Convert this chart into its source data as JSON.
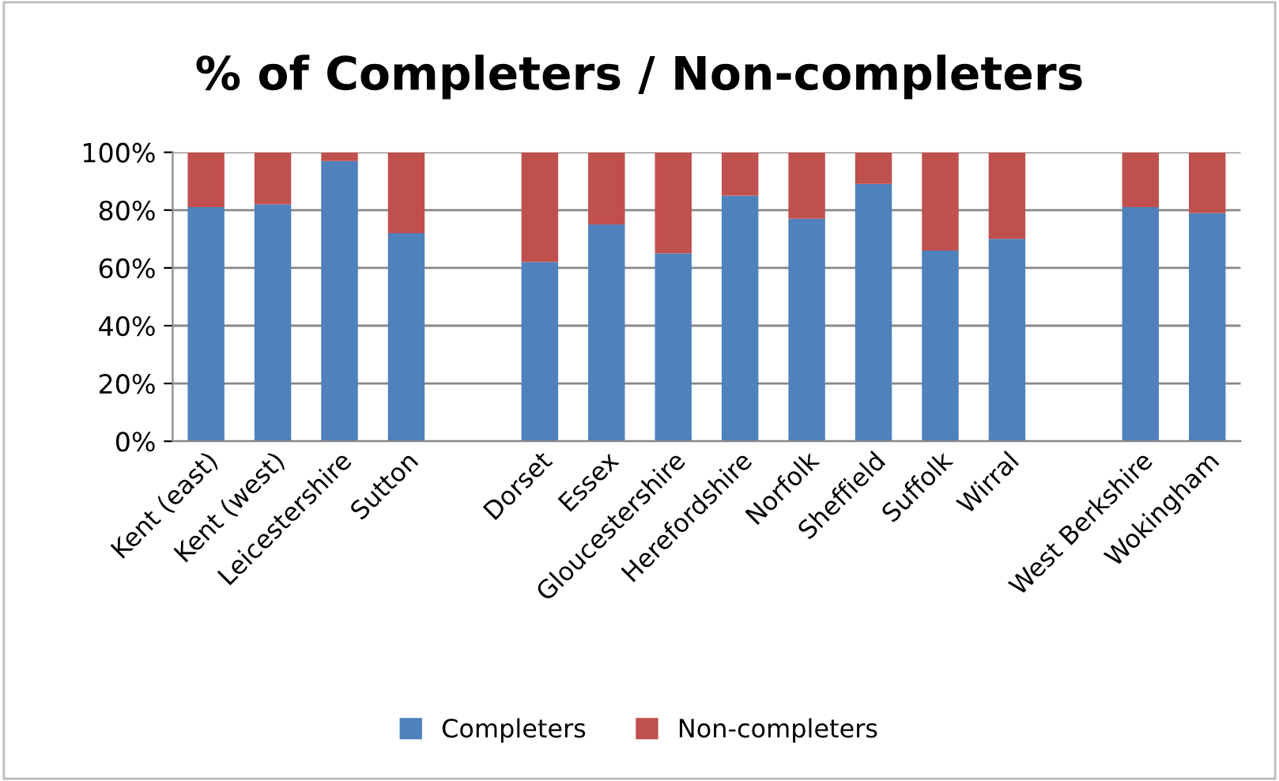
{
  "chart_data": {
    "type": "bar",
    "title": "% of Completers / Non-completers",
    "stacked": true,
    "categories": [
      "Kent (east)",
      "Kent (west)",
      "Leicestershire",
      "Sutton",
      null,
      "Dorset",
      "Essex",
      "Gloucestershire",
      "Herefordshire",
      "Norfolk",
      "Sheffield",
      "Suffolk",
      "Wirral",
      null,
      "West Berkshire",
      "Wokingham"
    ],
    "series": [
      {
        "name": "Completers",
        "color": "#4f81bd",
        "values": [
          81,
          82,
          97,
          72,
          null,
          62,
          75,
          65,
          85,
          77,
          89,
          66,
          70,
          null,
          81,
          79
        ]
      },
      {
        "name": "Non-completers",
        "color": "#c0504d",
        "values": [
          19,
          18,
          3,
          28,
          null,
          38,
          25,
          35,
          15,
          23,
          11,
          34,
          30,
          null,
          19,
          21
        ]
      }
    ],
    "ylim": [
      0,
      100
    ],
    "yticks": [
      {
        "value": 0,
        "label": "0%"
      },
      {
        "value": 20,
        "label": "20%"
      },
      {
        "value": 40,
        "label": "40%"
      },
      {
        "value": 60,
        "label": "60%"
      },
      {
        "value": 80,
        "label": "80%"
      },
      {
        "value": 100,
        "label": "100%"
      }
    ],
    "grid": "y",
    "legend": "bottom"
  }
}
